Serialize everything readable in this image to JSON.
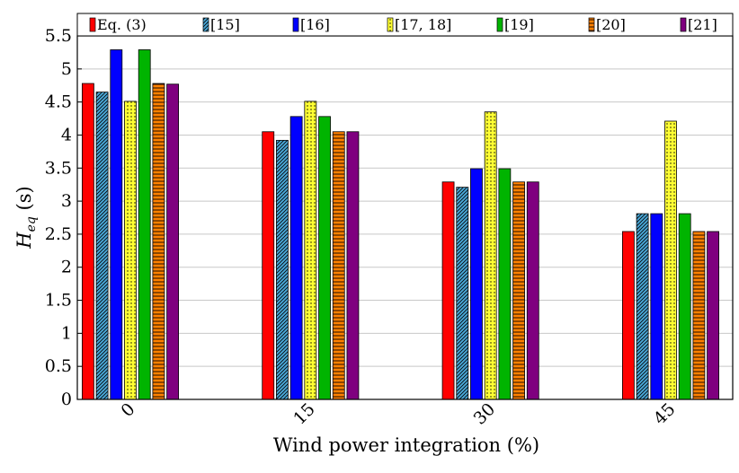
{
  "chart_data": {
    "type": "bar",
    "categories": [
      "0",
      "15",
      "30",
      "45"
    ],
    "series": [
      {
        "name": "Eq. (3)",
        "color": "#ff0000",
        "pattern": "solid",
        "values": [
          4.78,
          4.05,
          3.29,
          2.54
        ]
      },
      {
        "name": "[15]",
        "color": "#4aa8d8",
        "pattern": "diagonal",
        "values": [
          4.65,
          3.92,
          3.21,
          2.81
        ]
      },
      {
        "name": "[16]",
        "color": "#0000ff",
        "pattern": "solid",
        "values": [
          5.29,
          4.28,
          3.49,
          2.81
        ]
      },
      {
        "name": "[17, 18]",
        "color": "#ffff33",
        "pattern": "dots",
        "values": [
          4.51,
          4.51,
          4.35,
          4.21
        ]
      },
      {
        "name": "[19]",
        "color": "#00b400",
        "pattern": "solid",
        "values": [
          5.29,
          4.28,
          3.49,
          2.81
        ]
      },
      {
        "name": "[20]",
        "color": "#ff8000",
        "pattern": "horizontal",
        "values": [
          4.78,
          4.05,
          3.29,
          2.54
        ]
      },
      {
        "name": "[21]",
        "color": "#7f007f",
        "pattern": "solid",
        "values": [
          4.77,
          4.05,
          3.29,
          2.54
        ]
      }
    ],
    "xlabel_main": "Wind power integration (%)",
    "ylabel_main": "H",
    "ylabel_sub": "eq",
    "ylabel_unit": " (s)",
    "ylim": [
      0,
      5.5
    ],
    "yticks": [
      "0",
      "0.5",
      "1",
      "1.5",
      "2",
      "2.5",
      "3",
      "3.5",
      "4",
      "4.5",
      "5",
      "5.5"
    ],
    "grid": true,
    "legend_position": "top"
  }
}
